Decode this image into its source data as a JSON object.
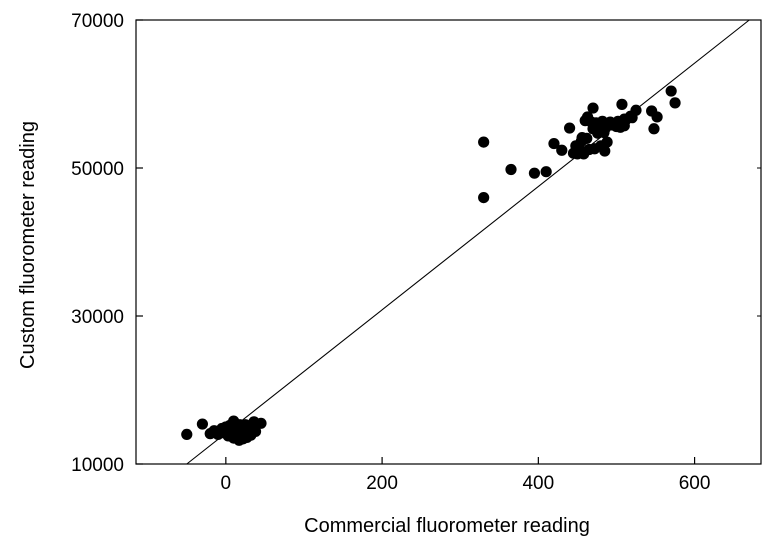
{
  "chart_data": {
    "type": "scatter",
    "title": "",
    "xlabel": "Commercial fluorometer reading",
    "ylabel": "Custom fluorometer reading",
    "xlim": [
      -115,
      685
    ],
    "ylim": [
      10000,
      70000
    ],
    "x_ticks": [
      0,
      200,
      400,
      600
    ],
    "y_ticks": [
      10000,
      30000,
      50000,
      70000
    ],
    "x_tick_labels": [
      "0",
      "200",
      "400",
      "600"
    ],
    "y_tick_labels": [
      "10000",
      "30000",
      "50000",
      "70000"
    ],
    "grid": false,
    "legend": "none",
    "marker_color": "#000000",
    "fit_line": {
      "from": [
        -50,
        10000
      ],
      "to": [
        670,
        70000
      ]
    },
    "series": [
      {
        "x": [
          -50,
          -30,
          -20,
          -15,
          -10,
          -5,
          -2,
          0,
          2,
          3,
          5,
          5,
          7,
          8,
          10,
          10,
          12,
          12,
          14,
          15,
          15,
          17,
          18,
          18,
          20,
          20,
          22,
          22,
          24,
          25,
          25,
          27,
          28,
          30,
          30,
          32,
          35,
          36,
          38,
          45,
          330,
          330,
          365,
          395,
          410,
          420,
          430,
          440,
          445,
          448,
          450,
          452,
          455,
          456,
          458,
          460,
          462,
          463,
          465,
          468,
          470,
          470,
          472,
          474,
          476,
          478,
          480,
          480,
          482,
          484,
          485,
          486,
          487,
          488,
          490,
          492,
          495,
          500,
          502,
          505,
          507,
          510,
          510,
          512,
          518,
          520,
          525,
          545,
          548,
          552,
          570,
          575
        ],
        "y": [
          14000,
          15400,
          14100,
          14500,
          14000,
          14800,
          14200,
          15000,
          14300,
          13800,
          15200,
          14600,
          14900,
          14000,
          15800,
          13500,
          14800,
          14200,
          13700,
          15000,
          14100,
          13200,
          15300,
          14300,
          13800,
          14600,
          15100,
          13400,
          14700,
          14000,
          15300,
          13600,
          14400,
          15000,
          14200,
          13900,
          14800,
          15700,
          14400,
          15500,
          53500,
          46000,
          49800,
          49300,
          49500,
          53300,
          52400,
          55400,
          52000,
          53000,
          51900,
          52700,
          53600,
          54100,
          51900,
          56400,
          54000,
          56900,
          52500,
          56200,
          55300,
          58100,
          52600,
          56100,
          54700,
          55700,
          54900,
          53000,
          56300,
          54800,
          52300,
          55400,
          56000,
          53500,
          55900,
          56200,
          55800,
          55600,
          56300,
          55500,
          58600,
          55700,
          56600,
          56500,
          57000,
          56800,
          57800,
          57700,
          55300,
          56900,
          60400,
          58800
        ]
      }
    ]
  }
}
